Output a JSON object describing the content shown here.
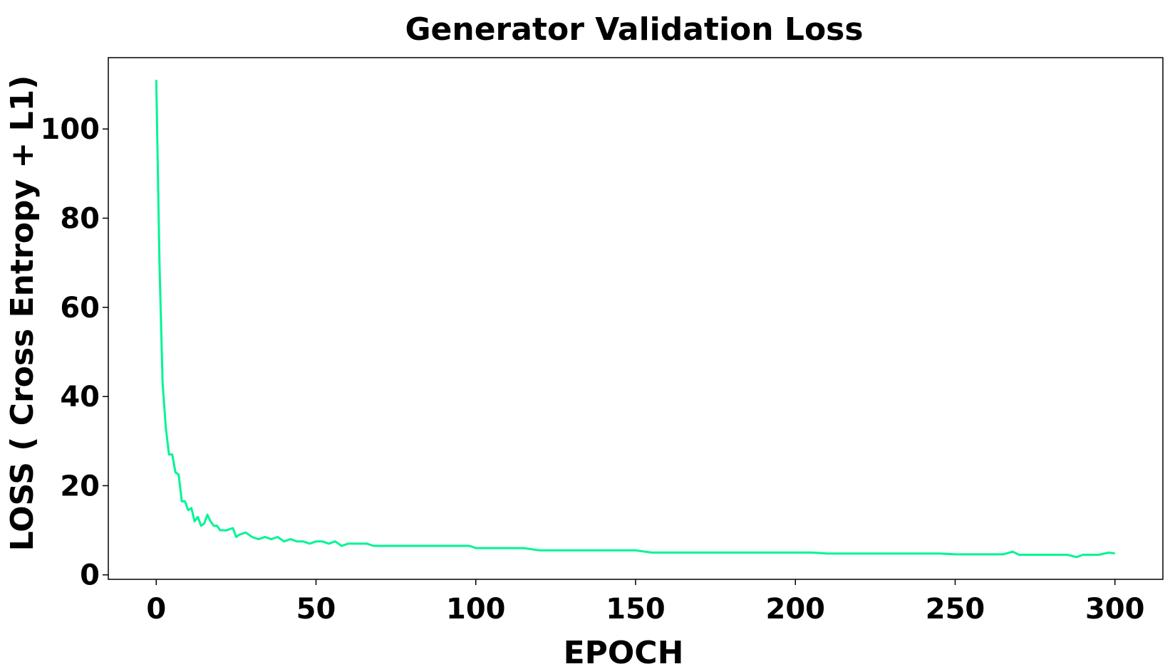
{
  "chart_data": {
    "type": "line",
    "title": "Generator Validation Loss",
    "xlabel": "EPOCH",
    "ylabel": "LOSS ( Cross Entropy + L1)",
    "xlim": [
      -15,
      315
    ],
    "ylim": [
      -1,
      116
    ],
    "xticks": [
      0,
      50,
      100,
      150,
      200,
      250,
      300
    ],
    "yticks": [
      0,
      20,
      40,
      60,
      80,
      100
    ],
    "grid": false,
    "legend": "none",
    "series": [
      {
        "color": "#00f593",
        "x": [
          0,
          1,
          2,
          3,
          4,
          5,
          6,
          7,
          8,
          9,
          10,
          11,
          12,
          13,
          14,
          15,
          16,
          17,
          18,
          19,
          20,
          22,
          24,
          25,
          26,
          28,
          30,
          32,
          34,
          36,
          38,
          40,
          42,
          44,
          46,
          48,
          50,
          52,
          54,
          56,
          58,
          60,
          62,
          64,
          66,
          68,
          70,
          72,
          74,
          76,
          78,
          80,
          82,
          84,
          86,
          88,
          90,
          92,
          94,
          96,
          98,
          100,
          105,
          110,
          115,
          120,
          125,
          130,
          135,
          140,
          145,
          150,
          155,
          160,
          165,
          170,
          175,
          180,
          185,
          190,
          195,
          200,
          205,
          210,
          215,
          220,
          225,
          230,
          235,
          240,
          245,
          250,
          255,
          260,
          265,
          268,
          270,
          275,
          280,
          285,
          288,
          290,
          295,
          298,
          300
        ],
        "y": [
          111,
          70,
          43,
          33,
          27,
          27,
          23,
          22.5,
          16.5,
          16.5,
          14.5,
          15,
          12,
          13,
          11,
          11.5,
          13.5,
          12,
          11,
          11,
          10,
          10,
          10.5,
          8.5,
          9,
          9.5,
          8.5,
          8,
          8.5,
          8,
          8.5,
          7.5,
          8,
          7.5,
          7.5,
          7,
          7.5,
          7.5,
          7,
          7.5,
          6.5,
          7,
          7,
          7,
          7,
          6.5,
          6.5,
          6.5,
          6.5,
          6.5,
          6.5,
          6.5,
          6.5,
          6.5,
          6.5,
          6.5,
          6.5,
          6.5,
          6.5,
          6.5,
          6.5,
          6,
          6,
          6,
          6,
          5.5,
          5.5,
          5.5,
          5.5,
          5.5,
          5.5,
          5.5,
          5,
          5,
          5,
          5,
          5,
          5,
          5,
          5,
          5,
          5,
          5,
          4.8,
          4.8,
          4.8,
          4.8,
          4.8,
          4.8,
          4.8,
          4.8,
          4.6,
          4.6,
          4.6,
          4.6,
          5.2,
          4.5,
          4.5,
          4.5,
          4.5,
          4,
          4.5,
          4.5,
          5,
          4.8
        ]
      }
    ]
  }
}
